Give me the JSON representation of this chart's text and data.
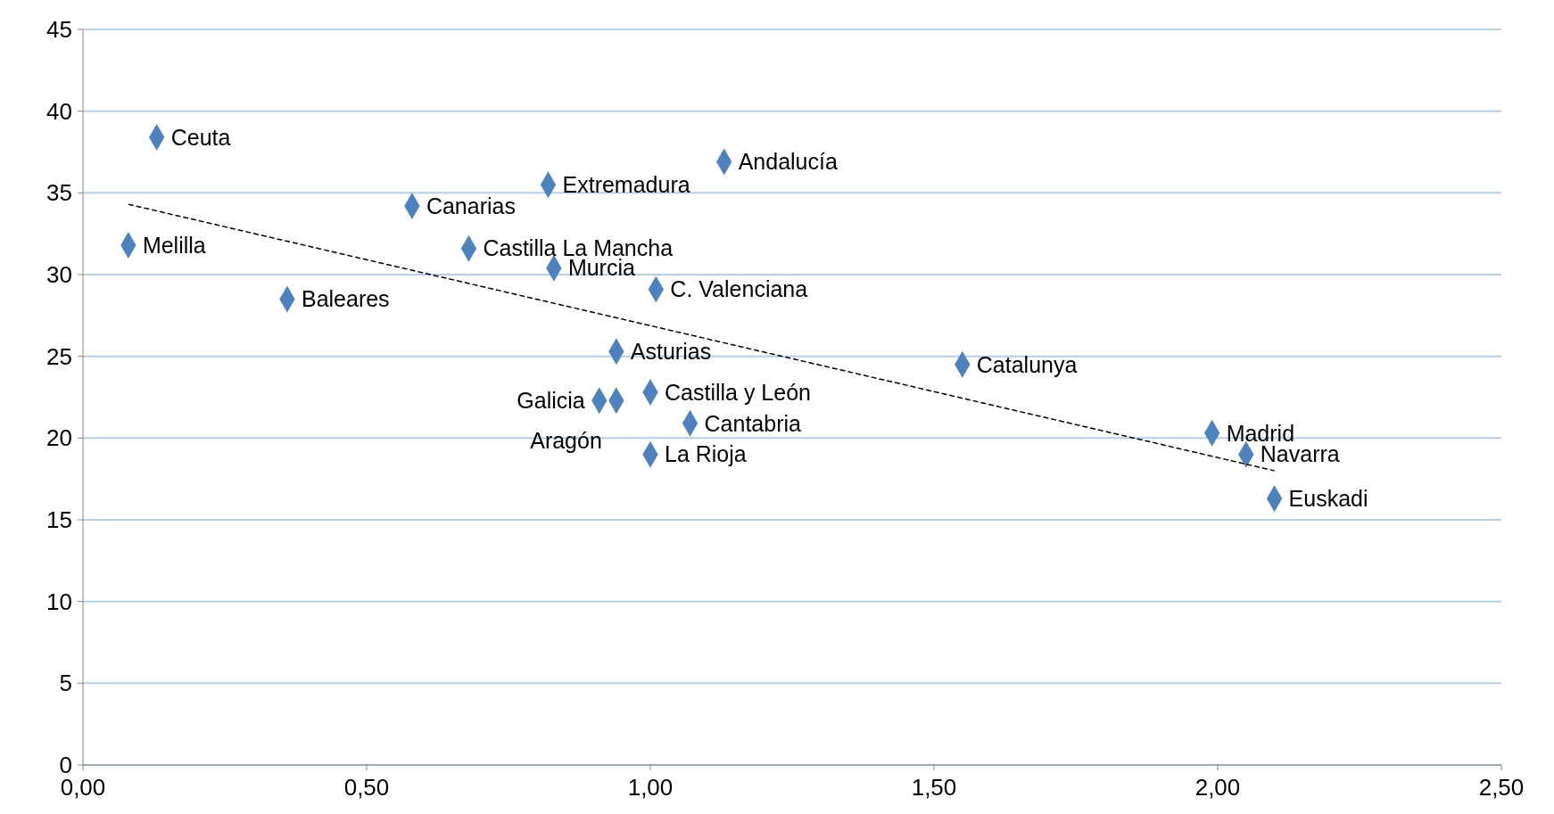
{
  "chart_data": {
    "type": "scatter",
    "grid": "y",
    "xlim": [
      0,
      2.5
    ],
    "ylim": [
      0,
      45
    ],
    "xticks": [
      {
        "value": 0,
        "label": "0,00"
      },
      {
        "value": 0.5,
        "label": "0,50"
      },
      {
        "value": 1,
        "label": "1,00"
      },
      {
        "value": 1.5,
        "label": "1,50"
      },
      {
        "value": 2,
        "label": "2,00"
      },
      {
        "value": 2.5,
        "label": "2,50"
      }
    ],
    "yticks": [
      0,
      5,
      10,
      15,
      20,
      25,
      30,
      35,
      40,
      45
    ],
    "series": [
      {
        "marker": "diamond",
        "color": "#4f81bd",
        "x": [
          0.13,
          0.08,
          0.36,
          0.58,
          0.68,
          0.82,
          0.83,
          1.13,
          1.01,
          0.94,
          0.91,
          0.94,
          1.0,
          1.07,
          1.0,
          1.55,
          1.99,
          2.05,
          2.1
        ],
        "values": [
          38.4,
          31.8,
          28.5,
          34.2,
          31.6,
          35.5,
          30.4,
          36.9,
          29.1,
          25.3,
          22.3,
          22.3,
          22.8,
          20.9,
          19.0,
          24.5,
          20.3,
          19.0,
          16.3
        ]
      },
      {
        "type": "line",
        "marker": "none",
        "color": "#000000",
        "line_style": "dashed",
        "x": [
          0.08,
          2.1
        ],
        "values": [
          34.3,
          18.0
        ]
      }
    ],
    "annotations": [
      {
        "text": "Ceuta",
        "x": 0.13,
        "y": 38.4
      },
      {
        "text": "Melilla",
        "x": 0.08,
        "y": 31.8
      },
      {
        "text": "Baleares",
        "x": 0.36,
        "y": 28.5
      },
      {
        "text": "Canarias",
        "x": 0.58,
        "y": 34.2
      },
      {
        "text": "Castilla La Mancha",
        "x": 0.68,
        "y": 31.6
      },
      {
        "text": "Extremadura",
        "x": 0.82,
        "y": 35.5
      },
      {
        "text": "Murcia",
        "x": 0.83,
        "y": 30.4
      },
      {
        "text": "Andalucía",
        "x": 1.13,
        "y": 36.9
      },
      {
        "text": "C. Valenciana",
        "x": 1.01,
        "y": 29.1
      },
      {
        "text": "Asturias",
        "x": 0.94,
        "y": 25.3
      },
      {
        "text": "Galicia",
        "x": 0.91,
        "y": 22.3
      },
      {
        "text": "Aragón",
        "x": 0.94,
        "y": 22.3
      },
      {
        "text": "Castilla y León",
        "x": 1.0,
        "y": 22.8
      },
      {
        "text": "Cantabria",
        "x": 1.07,
        "y": 20.9
      },
      {
        "text": "La Rioja",
        "x": 1.0,
        "y": 19.0
      },
      {
        "text": "Catalunya",
        "x": 1.55,
        "y": 24.5
      },
      {
        "text": "Madrid",
        "x": 1.99,
        "y": 20.3
      },
      {
        "text": "Navarra",
        "x": 2.05,
        "y": 19.0
      },
      {
        "text": "Euskadi",
        "x": 2.1,
        "y": 16.3
      }
    ]
  }
}
